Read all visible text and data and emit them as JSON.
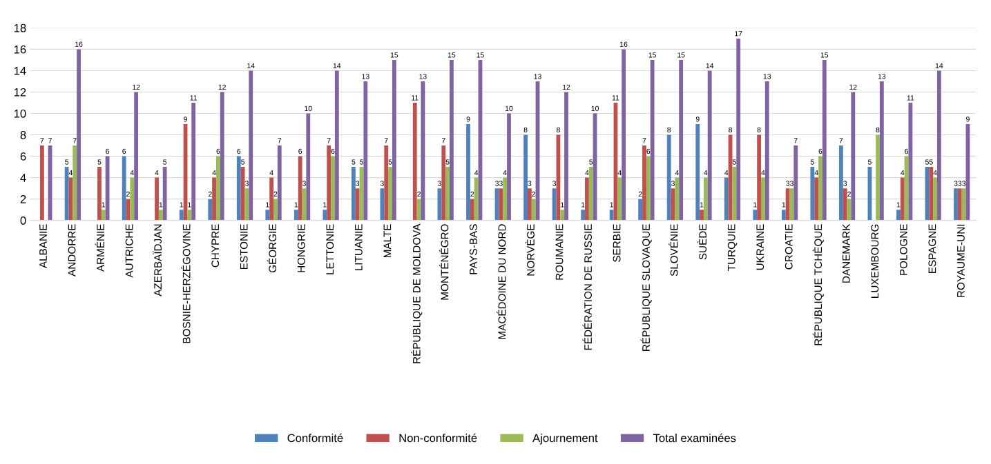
{
  "chart_data": {
    "type": "bar",
    "categories": [
      "ALBANIE",
      "ANDORRE",
      "ARMÉNIE",
      "AUTRICHE",
      "AZERBAÏDJAN",
      "BOSNIE-HERZÉGOVINE",
      "CHYPRE",
      "ESTONIE",
      "GÉORGIE",
      "HONGRIE",
      "LETTONIE",
      "LITUANIE",
      "MALTE",
      "RÉPUBLIQUE DE MOLDOVA",
      "MONTÉNÉGRO",
      "PAYS-BAS",
      "MACÉDOINE DU NORD",
      "NORVÈGE",
      "ROUMANIE",
      "FÉDÉRATION DE RUSSIE",
      "SERBIE",
      "RÉPUBLIQUE SLOVAQUE",
      "SLOVÉNIE",
      "SUÈDE",
      "TURQUIE",
      "UKRAINE",
      "CROATIE",
      "RÉPUBLIQUE TCHÈQUE",
      "DANEMARK",
      "LUXEMBOURG",
      "POLOGNE",
      "ESPAGNE",
      "ROYAUME-UNI"
    ],
    "series": [
      {
        "name": "Conformité",
        "color": "#4f81bd",
        "values": [
          null,
          5,
          null,
          6,
          null,
          1,
          2,
          6,
          1,
          1,
          1,
          5,
          3,
          null,
          3,
          9,
          3,
          8,
          3,
          1,
          1,
          2,
          8,
          9,
          4,
          1,
          1,
          5,
          7,
          5,
          1,
          5,
          3
        ]
      },
      {
        "name": "Non-conformité",
        "color": "#c0504d",
        "values": [
          7,
          4,
          5,
          2,
          4,
          9,
          4,
          5,
          4,
          6,
          7,
          3,
          7,
          11,
          7,
          2,
          3,
          3,
          8,
          4,
          11,
          7,
          3,
          1,
          8,
          8,
          3,
          4,
          3,
          null,
          4,
          5,
          3
        ]
      },
      {
        "name": "Ajournement",
        "color": "#9bbb59",
        "values": [
          null,
          7,
          1,
          4,
          1,
          1,
          6,
          3,
          2,
          3,
          6,
          5,
          5,
          2,
          5,
          4,
          4,
          2,
          1,
          5,
          4,
          6,
          4,
          4,
          5,
          4,
          3,
          6,
          2,
          8,
          6,
          4,
          3
        ]
      },
      {
        "name": "Total examinées",
        "color": "#8064a2",
        "values": [
          7,
          16,
          6,
          12,
          5,
          11,
          12,
          14,
          7,
          10,
          14,
          13,
          15,
          13,
          15,
          15,
          10,
          13,
          12,
          10,
          16,
          15,
          15,
          14,
          17,
          13,
          7,
          15,
          12,
          13,
          11,
          14,
          9
        ]
      }
    ],
    "ylim": [
      0,
      18
    ],
    "yticks": [
      0,
      2,
      4,
      6,
      8,
      10,
      12,
      14,
      16,
      18
    ],
    "grid": "y",
    "legend": "bottom",
    "data_labels": true
  }
}
